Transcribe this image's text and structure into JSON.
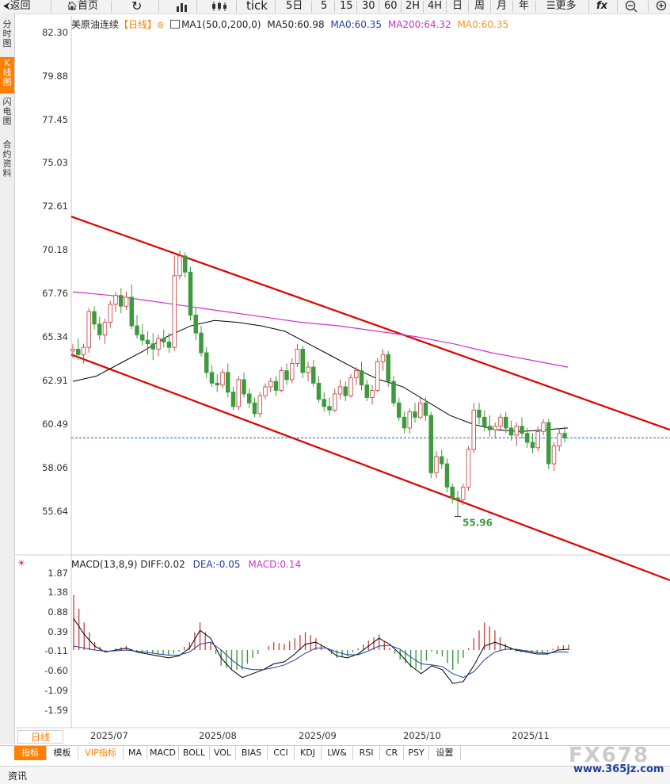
{
  "toolbar": {
    "items": [
      {
        "label": "返回",
        "icon": "back-arrow-icon"
      },
      {
        "label": "首页",
        "icon": "home-icon"
      },
      {
        "label": "",
        "icon": "refresh-icon"
      },
      {
        "label": "",
        "icon": "bar-chart-icon"
      },
      {
        "label": "",
        "icon": "candlestick-icon"
      },
      {
        "label": "tick"
      },
      {
        "label": "5日"
      },
      {
        "label": "5"
      },
      {
        "label": "15"
      },
      {
        "label": "30"
      },
      {
        "label": "60"
      },
      {
        "label": "2H"
      },
      {
        "label": "4H"
      },
      {
        "label": "日"
      },
      {
        "label": "周"
      },
      {
        "label": "月"
      },
      {
        "label": "年"
      },
      {
        "label": "更多",
        "icon": "menu-icon"
      },
      {
        "label": "",
        "icon": "fx-icon"
      },
      {
        "label": "",
        "icon": "zoom-out-icon"
      },
      {
        "label": "",
        "icon": "zoom-in-icon"
      }
    ]
  },
  "sidebar": {
    "items": [
      {
        "label": "分时图",
        "active": false
      },
      {
        "label": "K线图",
        "active": true
      },
      {
        "label": "闪电图",
        "active": false
      },
      {
        "label": "合约资料",
        "active": false
      }
    ]
  },
  "header": {
    "name": "美原油连续",
    "period": "【日线】",
    "ma_label": "MA1(50,0,200,0)",
    "ma50": "MA50:60.98",
    "ma0a": "MA0:60.35",
    "ma200": "MA200:64.32",
    "ma0b": "MA0:60.35"
  },
  "macd_header": {
    "name": "MACD(13,8,9)",
    "diff": "DIFF:0.02",
    "dea": "DEA:-0.05",
    "macd": "MACD:0.14"
  },
  "bottom_tabs": [
    "指标",
    "模板",
    "VIP指标",
    "MA",
    "MACD",
    "BOLL",
    "VOL",
    "BIAS",
    "CCI",
    "KDJ",
    "LW&",
    "RSI",
    "CR",
    "PSY",
    "设置"
  ],
  "status": {
    "label": "资讯"
  },
  "watermark": {
    "brand": "FX678",
    "site": "www.365jz.com"
  },
  "colors": {
    "up": "#c74d4d",
    "down": "#3d9a3d",
    "ma50": "#000000",
    "ma200": "#cc33cc",
    "channel": "#e00000",
    "price_line": "#1f5fbf",
    "accent": "#ff7f00"
  },
  "chart_data": [
    {
      "type": "candlestick",
      "title": "美原油连续【日线】",
      "y_ticks": [
        "82.30",
        "79.88",
        "77.45",
        "75.03",
        "72.61",
        "70.18",
        "67.76",
        "65.34",
        "62.91",
        "60.49",
        "58.06",
        "55.64"
      ],
      "ylim": [
        53.9,
        83.1
      ],
      "x_ticks": [
        "2025/07",
        "2025/08",
        "2025/09",
        "2025/10",
        "2025/11"
      ],
      "x_label": "日线",
      "current_price": 60.35,
      "low_annotation": {
        "label": "55.96",
        "value": 55.96
      },
      "ohlc_estimated": [
        [
          65.2,
          65.6,
          64.8,
          65.3
        ],
        [
          65.3,
          65.9,
          64.7,
          65.0
        ],
        [
          65.0,
          65.6,
          64.5,
          65.4
        ],
        [
          65.4,
          67.6,
          65.1,
          67.4
        ],
        [
          67.4,
          67.7,
          66.4,
          66.7
        ],
        [
          66.7,
          67.1,
          65.8,
          66.1
        ],
        [
          66.1,
          67.0,
          65.6,
          66.8
        ],
        [
          66.8,
          68.0,
          66.5,
          67.8
        ],
        [
          67.8,
          68.5,
          67.4,
          68.3
        ],
        [
          68.3,
          68.7,
          67.3,
          67.7
        ],
        [
          67.7,
          68.5,
          67.5,
          68.2
        ],
        [
          68.2,
          68.9,
          66.4,
          66.6
        ],
        [
          66.6,
          67.2,
          65.9,
          66.1
        ],
        [
          66.1,
          66.7,
          65.5,
          65.8
        ],
        [
          65.8,
          66.3,
          65.0,
          65.6
        ],
        [
          65.6,
          66.2,
          64.7,
          65.3
        ],
        [
          65.3,
          66.1,
          64.9,
          65.9
        ],
        [
          65.9,
          66.4,
          65.4,
          65.7
        ],
        [
          65.7,
          66.2,
          65.1,
          65.4
        ],
        [
          65.4,
          70.5,
          65.2,
          69.4
        ],
        [
          69.4,
          70.8,
          69.2,
          70.5
        ],
        [
          70.5,
          70.7,
          69.3,
          69.6
        ],
        [
          69.6,
          69.9,
          66.9,
          67.2
        ],
        [
          67.2,
          67.6,
          65.8,
          66.2
        ],
        [
          66.2,
          66.6,
          64.9,
          65.1
        ],
        [
          65.1,
          65.4,
          63.7,
          64.0
        ],
        [
          64.0,
          64.4,
          63.2,
          63.4
        ],
        [
          63.4,
          63.9,
          62.9,
          63.3
        ],
        [
          63.3,
          64.2,
          63.1,
          64.0
        ],
        [
          64.0,
          64.5,
          62.6,
          62.9
        ],
        [
          62.9,
          63.2,
          61.9,
          62.1
        ],
        [
          62.1,
          63.8,
          61.9,
          63.6
        ],
        [
          63.6,
          64.0,
          62.6,
          62.8
        ],
        [
          62.8,
          63.1,
          62.0,
          62.3
        ],
        [
          62.3,
          62.6,
          61.5,
          61.7
        ],
        [
          61.7,
          62.9,
          61.5,
          62.7
        ],
        [
          62.7,
          63.4,
          62.5,
          63.2
        ],
        [
          63.2,
          63.7,
          62.9,
          63.5
        ],
        [
          63.5,
          63.8,
          62.7,
          63.0
        ],
        [
          63.0,
          64.3,
          62.9,
          64.1
        ],
        [
          64.1,
          64.5,
          63.3,
          63.6
        ],
        [
          63.6,
          64.8,
          63.4,
          64.5
        ],
        [
          64.5,
          65.6,
          64.3,
          65.3
        ],
        [
          65.3,
          65.5,
          63.7,
          64.0
        ],
        [
          64.0,
          64.6,
          63.5,
          64.3
        ],
        [
          64.3,
          64.7,
          63.2,
          63.4
        ],
        [
          63.4,
          63.8,
          62.3,
          62.5
        ],
        [
          62.5,
          62.9,
          61.8,
          62.1
        ],
        [
          62.1,
          62.6,
          61.6,
          61.9
        ],
        [
          61.9,
          63.1,
          61.8,
          62.8
        ],
        [
          62.8,
          63.6,
          62.5,
          63.2
        ],
        [
          63.2,
          63.5,
          62.4,
          62.7
        ],
        [
          62.7,
          63.9,
          62.6,
          63.7
        ],
        [
          63.7,
          64.3,
          63.3,
          64.1
        ],
        [
          64.1,
          64.6,
          63.0,
          63.3
        ],
        [
          63.3,
          63.6,
          62.4,
          62.6
        ],
        [
          62.6,
          63.3,
          62.2,
          63.0
        ],
        [
          63.0,
          64.8,
          62.9,
          64.6
        ],
        [
          64.6,
          65.3,
          64.1,
          65.0
        ],
        [
          65.0,
          65.2,
          63.2,
          63.5
        ],
        [
          63.5,
          63.8,
          62.1,
          62.3
        ],
        [
          62.3,
          62.6,
          61.3,
          61.5
        ],
        [
          61.5,
          61.8,
          60.6,
          60.9
        ],
        [
          60.9,
          62.0,
          60.6,
          61.8
        ],
        [
          61.8,
          62.3,
          61.2,
          61.5
        ],
        [
          61.5,
          62.6,
          61.4,
          62.3
        ],
        [
          62.3,
          62.6,
          61.3,
          61.6
        ],
        [
          61.6,
          61.8,
          58.1,
          58.4
        ],
        [
          58.4,
          59.6,
          58.1,
          59.3
        ],
        [
          59.3,
          59.7,
          58.6,
          58.9
        ],
        [
          58.9,
          59.2,
          57.3,
          57.6
        ],
        [
          57.6,
          57.8,
          56.7,
          57.0
        ],
        [
          57.0,
          57.4,
          55.96,
          56.9
        ],
        [
          56.9,
          57.8,
          56.6,
          57.6
        ],
        [
          57.6,
          59.9,
          57.4,
          59.7
        ],
        [
          59.7,
          62.3,
          59.5,
          61.9
        ],
        [
          61.9,
          62.3,
          61.1,
          61.5
        ],
        [
          61.5,
          61.9,
          60.7,
          61.0
        ],
        [
          61.0,
          61.6,
          60.4,
          60.8
        ],
        [
          60.8,
          61.2,
          60.3,
          61.0
        ],
        [
          61.0,
          61.7,
          60.8,
          61.5
        ],
        [
          61.5,
          61.8,
          60.6,
          60.9
        ],
        [
          60.9,
          61.3,
          60.2,
          60.5
        ],
        [
          60.5,
          61.2,
          59.9,
          61.0
        ],
        [
          61.0,
          61.5,
          60.3,
          60.6
        ],
        [
          60.6,
          60.9,
          59.8,
          60.1
        ],
        [
          60.1,
          60.6,
          59.5,
          59.8
        ],
        [
          59.8,
          61.0,
          59.6,
          60.7
        ],
        [
          60.7,
          61.4,
          60.5,
          61.2
        ],
        [
          61.2,
          61.4,
          58.6,
          58.9
        ],
        [
          58.9,
          60.1,
          58.5,
          59.9
        ],
        [
          59.9,
          60.9,
          59.6,
          60.6
        ],
        [
          60.6,
          61.0,
          60.1,
          60.35
        ]
      ],
      "ma50_estimated": [
        63.5,
        63.8,
        64.5,
        65.2,
        66.0,
        66.6,
        66.9,
        66.8,
        66.6,
        66.3,
        65.6,
        64.9,
        64.2,
        63.6,
        63.2,
        62.4,
        61.6,
        61.1,
        60.8,
        60.7,
        60.8,
        60.9
      ],
      "ma200_estimated": [
        68.5,
        68.3,
        68.0,
        67.7,
        67.4,
        67.1,
        66.8,
        66.6,
        66.3,
        66.0,
        65.6,
        65.1,
        64.7,
        64.3
      ],
      "channel": {
        "upper": [
          [
            0,
            72.7
          ],
          [
            1,
            60.8
          ]
        ],
        "lower": [
          [
            0,
            65.0
          ],
          [
            1,
            52.4
          ]
        ]
      }
    },
    {
      "type": "macd",
      "title": "MACD(13,8,9)",
      "y_ticks": [
        "1.87",
        "1.38",
        "0.88",
        "0.39",
        "-0.11",
        "-0.60",
        "-1.09",
        "-1.59"
      ],
      "ylim": [
        -2.0,
        2.0
      ],
      "diff": 0.02,
      "dea": -0.05,
      "macd": 0.14,
      "diff_estimated": [
        0.8,
        0.4,
        0.1,
        -0.05,
        0.0,
        0.05,
        -0.05,
        -0.1,
        -0.15,
        -0.2,
        -0.15,
        0.05,
        0.5,
        0.3,
        -0.2,
        -0.5,
        -0.7,
        -0.6,
        -0.5,
        -0.35,
        -0.3,
        -0.1,
        0.15,
        0.2,
        0.05,
        -0.15,
        -0.2,
        -0.1,
        0.1,
        0.3,
        0.15,
        -0.1,
        -0.4,
        -0.6,
        -0.4,
        -0.5,
        -0.85,
        -0.8,
        -0.4,
        0.1,
        0.2,
        0.1,
        0.0,
        -0.05,
        -0.1,
        -0.1,
        0.0,
        0.02
      ],
      "dea_estimated": [
        0.1,
        0.05,
        0.0,
        -0.03,
        -0.02,
        0.0,
        -0.03,
        -0.06,
        -0.1,
        -0.13,
        -0.13,
        -0.05,
        0.15,
        0.2,
        0.0,
        -0.25,
        -0.45,
        -0.5,
        -0.5,
        -0.45,
        -0.38,
        -0.25,
        -0.08,
        0.05,
        0.05,
        -0.05,
        -0.12,
        -0.12,
        -0.02,
        0.1,
        0.12,
        0.02,
        -0.18,
        -0.35,
        -0.38,
        -0.42,
        -0.6,
        -0.7,
        -0.55,
        -0.25,
        -0.05,
        0.02,
        0.02,
        -0.02,
        -0.06,
        -0.08,
        -0.05,
        -0.05
      ]
    }
  ]
}
